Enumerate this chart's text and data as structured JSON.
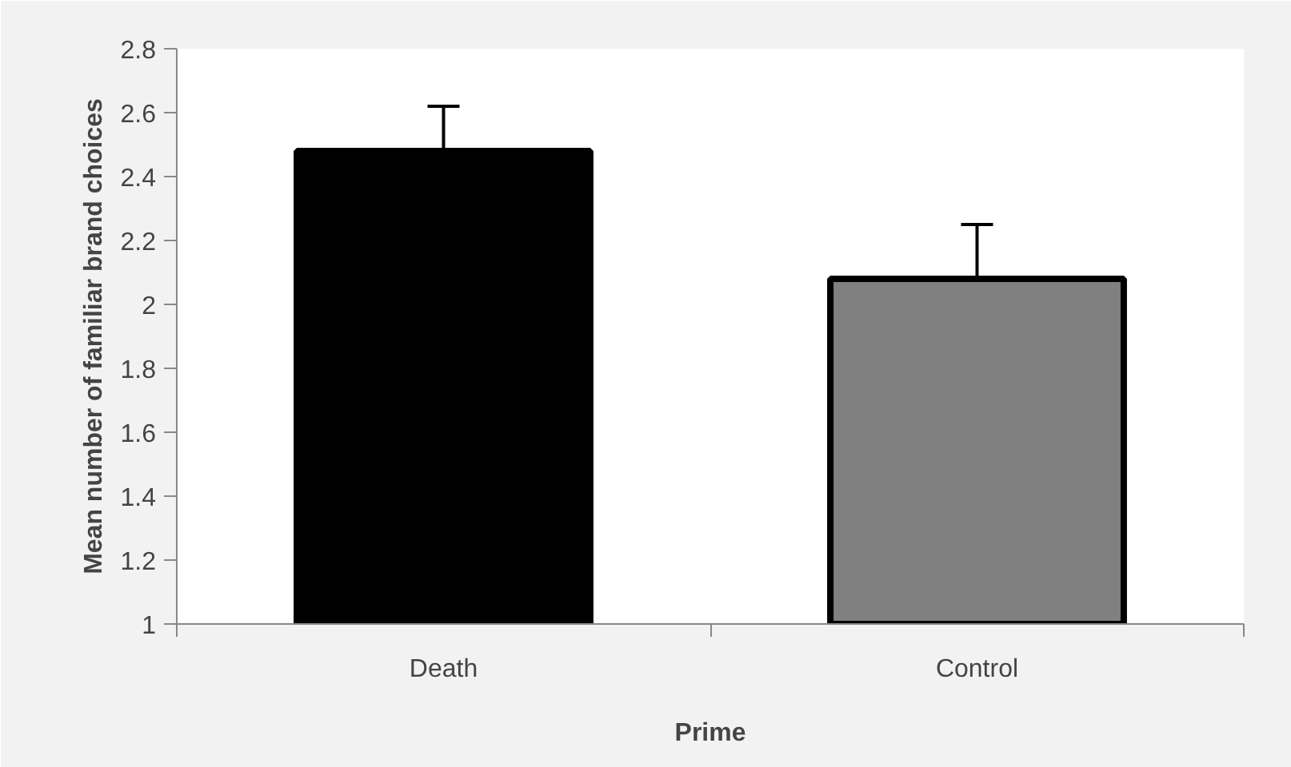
{
  "chart_data": {
    "type": "bar",
    "xlabel": "Prime",
    "ylabel": "Mean number of familiar brand choices",
    "categories": [
      "Death",
      "Control"
    ],
    "values": [
      2.48,
      2.08
    ],
    "colors": [
      "#000000",
      "#808080"
    ],
    "errors": [
      [
        2.48,
        2.62
      ],
      [
        2.08,
        2.25
      ]
    ],
    "ylim": [
      1,
      2.8
    ],
    "yticks": [
      1,
      1.2,
      1.4,
      1.6,
      1.8,
      2,
      2.2,
      2.4,
      2.6,
      2.8
    ],
    "grid": false
  }
}
